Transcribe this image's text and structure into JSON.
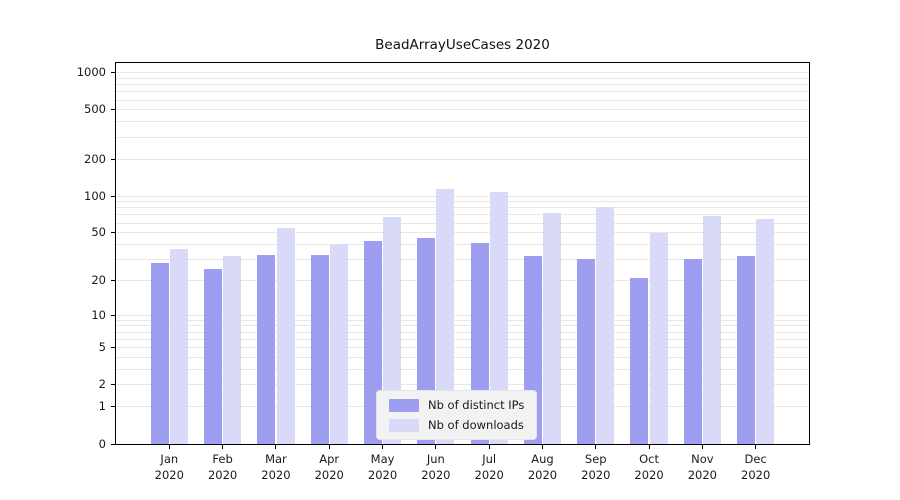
{
  "chart_data": {
    "type": "bar",
    "title": "BeadArrayUseCases 2020",
    "y_scale": "log10(1+x)",
    "months": [
      "Jan",
      "Feb",
      "Mar",
      "Apr",
      "May",
      "Jun",
      "Jul",
      "Aug",
      "Sep",
      "Oct",
      "Nov",
      "Dec"
    ],
    "year": "2020",
    "series": [
      {
        "name": "Nb of distinct IPs",
        "values": [
          28,
          25,
          33,
          33,
          43,
          45,
          41,
          32,
          30,
          21,
          30,
          32
        ]
      },
      {
        "name": "Nb of downloads",
        "values": [
          37,
          32,
          55,
          40,
          67,
          115,
          107,
          73,
          82,
          50,
          69,
          65
        ]
      }
    ],
    "y_ticks": [
      0,
      1,
      2,
      5,
      10,
      20,
      50,
      100,
      200,
      500,
      1000
    ],
    "ylim": [
      0,
      1200
    ],
    "grid": true,
    "legend_position": "bottom-center"
  },
  "colors": {
    "ips": "#9e9ef0",
    "downloads": "#d9d9f8",
    "grid": "#e7e7e7",
    "axis": "#000000",
    "legend_bg": "#f2f2f2"
  }
}
